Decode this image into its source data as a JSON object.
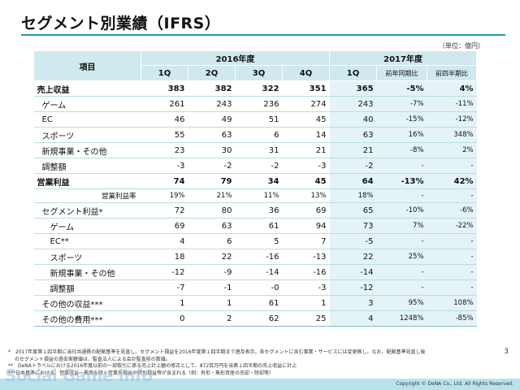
{
  "title": "セグメント別業績（IFRS）",
  "unit": "（単位：億円）",
  "header": {
    "item": "項目",
    "fy2016": "2016年度",
    "fy2017": "2017年度",
    "quarters": [
      "1Q",
      "2Q",
      "3Q",
      "4Q",
      "1Q"
    ],
    "yoy": "前年同期比",
    "qoq": "前四半期比"
  },
  "rows": [
    {
      "label": "売上収益",
      "values": [
        "383",
        "382",
        "322",
        "351",
        "365"
      ],
      "yoy": "-5%",
      "qoq": "4%"
    },
    {
      "label": "ゲーム",
      "values": [
        "261",
        "243",
        "236",
        "274",
        "243"
      ],
      "yoy": "-7%",
      "qoq": "-11%"
    },
    {
      "label": "EC",
      "values": [
        "46",
        "49",
        "51",
        "45",
        "40"
      ],
      "yoy": "-15%",
      "qoq": "-12%"
    },
    {
      "label": "スポーツ",
      "values": [
        "55",
        "63",
        "6",
        "14",
        "63"
      ],
      "yoy": "16%",
      "qoq": "348%"
    },
    {
      "label": "新規事業・その他",
      "values": [
        "23",
        "30",
        "31",
        "21",
        "21"
      ],
      "yoy": "-8%",
      "qoq": "2%"
    },
    {
      "label": "調整額",
      "values": [
        "-3",
        "-2",
        "-2",
        "-3",
        "-2"
      ],
      "yoy": "-",
      "qoq": "-"
    },
    {
      "label": "営業利益",
      "values": [
        "74",
        "79",
        "34",
        "45",
        "64"
      ],
      "yoy": "-13%",
      "qoq": "42%"
    },
    {
      "label": "営業利益率",
      "values": [
        "19%",
        "21%",
        "11%",
        "13%",
        "18%"
      ],
      "yoy": "-",
      "qoq": "-"
    },
    {
      "label": "セグメント利益*",
      "values": [
        "72",
        "80",
        "36",
        "69",
        "65"
      ],
      "yoy": "-10%",
      "qoq": "-6%"
    },
    {
      "label": "ゲーム",
      "values": [
        "69",
        "63",
        "61",
        "94",
        "73"
      ],
      "yoy": "7%",
      "qoq": "-22%"
    },
    {
      "label": "EC**",
      "values": [
        "4",
        "6",
        "5",
        "7",
        "-5"
      ],
      "yoy": "-",
      "qoq": "-"
    },
    {
      "label": "スポーツ",
      "values": [
        "18",
        "22",
        "-16",
        "-13",
        "22"
      ],
      "yoy": "25%",
      "qoq": "-"
    },
    {
      "label": "新規事業・その他",
      "values": [
        "-12",
        "-9",
        "-14",
        "-16",
        "-14"
      ],
      "yoy": "-",
      "qoq": "-"
    },
    {
      "label": "調整額",
      "values": [
        "-7",
        "-1",
        "-0",
        "-3",
        "-12"
      ],
      "yoy": "-",
      "qoq": "-"
    },
    {
      "label": "その他の収益***",
      "values": [
        "1",
        "1",
        "61",
        "1",
        "3"
      ],
      "yoy": "95%",
      "qoq": "108%"
    },
    {
      "label": "その他の費用***",
      "values": [
        "0",
        "2",
        "62",
        "25",
        "4"
      ],
      "yoy": "1248%",
      "qoq": "-85%"
    }
  ],
  "notes": [
    "*　2017年度第１四半期に当社共通費の配賦基準を見直し、セグメント損益を2016年度第１四半期まで遡及表示。各セグメントに含む事業・サービスには変更無し。なお、配賦基準見直し後",
    "　 のセグメント損益の過去実績値は、監査法人による会計監査前の数値。",
    "**　DeNAトラベルにおける2016年度以前の一部取引に係る売上計上額の修正として、872百万円を当第１四半期の売上収益に計上",
    "***日本基準における、営業収益・費用を除く営業外損益や特別損益等が含まれる（例：有形・無形資産の売却・除却等）"
  ],
  "page_number": "3",
  "watermark": "Social Game Info",
  "copyright": "Copyright © DeNA Co., Ltd. All Rights Reserved."
}
